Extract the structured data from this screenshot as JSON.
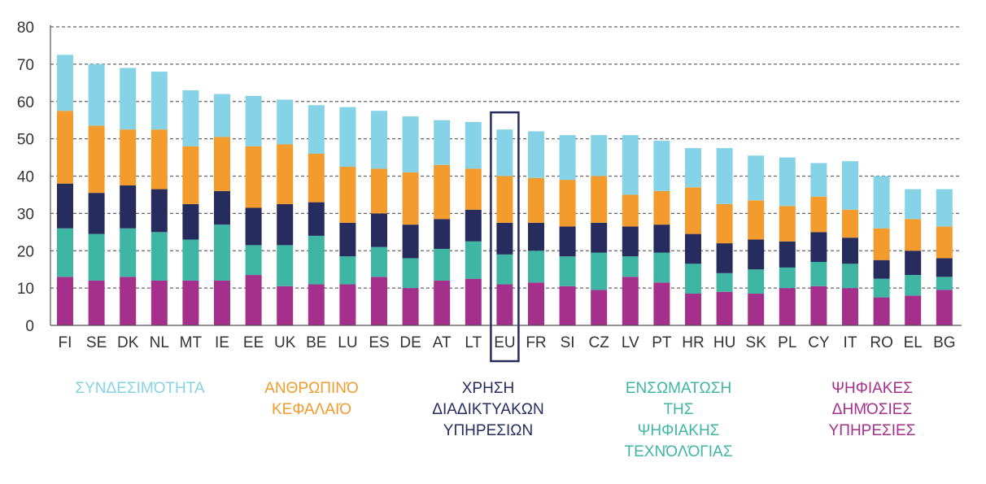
{
  "chart_data": {
    "type": "bar",
    "stacked": true,
    "categories": [
      "FI",
      "SE",
      "DK",
      "NL",
      "MT",
      "IE",
      "EE",
      "UK",
      "BE",
      "LU",
      "ES",
      "DE",
      "AT",
      "LT",
      "EU",
      "FR",
      "SI",
      "CZ",
      "LV",
      "PT",
      "HR",
      "HU",
      "SK",
      "PL",
      "CY",
      "IT",
      "RO",
      "EL",
      "BG"
    ],
    "highlight_category": "EU",
    "ylim": [
      0,
      80
    ],
    "yticks": [
      0,
      10,
      20,
      30,
      40,
      50,
      60,
      70,
      80
    ],
    "grid": true,
    "series": [
      {
        "key": "digital_public_services",
        "name": "ΨΗΦΙΑΚΕΣ ΔΗΜΌΣΙΕΣ ΥΠΗΡΕΣΙΕΣ",
        "legend_lines": [
          "ΨΗΦΙΑΚΕΣ",
          "ΔΗΜΌΣΙΕΣ",
          "ΥΠΗΡΕΣΙΕΣ"
        ],
        "color": "#a5308c",
        "values": [
          13,
          12,
          13,
          12,
          12,
          12,
          13.5,
          10.5,
          11,
          11,
          13,
          10,
          12,
          12.5,
          11,
          11.5,
          10.5,
          9.5,
          13,
          11.5,
          8.5,
          9,
          8.5,
          10,
          10.5,
          10,
          7.5,
          8,
          9.5
        ]
      },
      {
        "key": "integration_of_digital_technology",
        "name": "ΕΝΣΩΜΑΤΩΣΗ ΤΗΣ ΨΗΦΙΑΚΗΣ ΤΕΧΝΌΛΌΓΙΑΣ",
        "legend_lines": [
          "ΕΝΣΩΜΑΤΩΣΗ",
          "ΤΗΣ",
          "ΨΗΦΙΑΚΗΣ",
          "ΤΕΧΝΌΛΌΓΙΑΣ"
        ],
        "color": "#3fb6a4",
        "values": [
          13,
          12.5,
          13,
          13,
          11,
          15,
          8,
          11,
          13,
          7.5,
          8,
          8,
          8.5,
          10,
          8,
          8.5,
          8,
          10,
          5.5,
          8,
          8,
          5,
          6.5,
          5.5,
          6.5,
          6.5,
          5,
          5.5,
          3.5
        ]
      },
      {
        "key": "use_of_internet_services",
        "name": "ΧΡΗΣΗ ΔΙΑΔΙΚΤΥΑΚΩΝ ΥΠΗΡΕΣΙΩΝ",
        "legend_lines": [
          "ΧΡΗΣΗ",
          "ΔΙΑΔΙΚΤΥΑΚΩΝ",
          "ΥΠΗΡΕΣΙΩΝ"
        ],
        "color": "#262c5e",
        "values": [
          12,
          11,
          11.5,
          11.5,
          9.5,
          9,
          10,
          11,
          9,
          9,
          9,
          9,
          8,
          8.5,
          8.5,
          7.5,
          8,
          8,
          8,
          7.5,
          8,
          8,
          8,
          7,
          8,
          7,
          5,
          6.5,
          5
        ]
      },
      {
        "key": "human_capital",
        "name": "ΑΝΘΡΩΠΙΝΌ ΚΕΦΑΛΑΙΌ",
        "legend_lines": [
          "ΑΝΘΡΩΠΙΝΌ",
          "ΚΕΦΑΛΑΙΌ"
        ],
        "color": "#f39b2c",
        "values": [
          19.5,
          18,
          15,
          16,
          15.5,
          14.5,
          16.5,
          16,
          13,
          15,
          12,
          14,
          14.5,
          11,
          12.5,
          12,
          12.5,
          12.5,
          8.5,
          9,
          12.5,
          10.5,
          10.5,
          9.5,
          9.5,
          7.5,
          8.5,
          8.5,
          8.5
        ]
      },
      {
        "key": "connectivity",
        "name": "ΣΥΝΔΕΣΙΜΌΤΗΤΑ",
        "legend_lines": [
          "ΣΥΝΔΕΣΙΜΌΤΗΤΑ"
        ],
        "color": "#86d2e6",
        "values": [
          15,
          16.5,
          16.5,
          15.5,
          15,
          11.5,
          13.5,
          12,
          13,
          16,
          15.5,
          15,
          12,
          12.5,
          12.5,
          12.5,
          12,
          11,
          16,
          13.5,
          10.5,
          15,
          12,
          13,
          9,
          13,
          14,
          8,
          10
        ]
      }
    ]
  }
}
